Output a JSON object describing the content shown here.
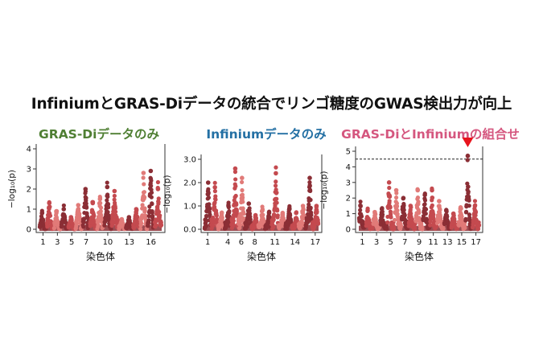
{
  "title": "InfiniumとGRAS-Diデータの統合でリンゴ糖度のGWAS検出力が向上",
  "colors": {
    "dark": "#8b2e35",
    "mid": "#c44a4f",
    "light": "#e17a78",
    "marker": "#e8141d",
    "threshold": "#222222"
  },
  "chart_data": [
    {
      "type": "scatter",
      "subtitle": "GRAS-Diデータのみ",
      "subtitle_color": "#4f7f33",
      "xlabel": "染色体",
      "ylabel": "−log₁₀(p)",
      "ylim": [
        0,
        4
      ],
      "yticks": [
        "0",
        "1",
        "2",
        "3",
        "4"
      ],
      "xticks": [
        "1",
        "3",
        "5",
        "7",
        "10",
        "13",
        "16"
      ],
      "chromosomes": [
        {
          "chr": "1",
          "peak": 0.8
        },
        {
          "chr": "2",
          "peak": 1.3
        },
        {
          "chr": "3",
          "peak": 0.9
        },
        {
          "chr": "4",
          "peak": 1.0
        },
        {
          "chr": "5",
          "peak": 0.6
        },
        {
          "chr": "6",
          "peak": 1.2
        },
        {
          "chr": "7",
          "peak": 2.0
        },
        {
          "chr": "8",
          "peak": 1.3
        },
        {
          "chr": "9",
          "peak": 1.5
        },
        {
          "chr": "10",
          "peak": 2.1
        },
        {
          "chr": "11",
          "peak": 1.9
        },
        {
          "chr": "12",
          "peak": 0.5
        },
        {
          "chr": "13",
          "peak": 0.6
        },
        {
          "chr": "14",
          "peak": 1.0
        },
        {
          "chr": "15",
          "peak": 2.8
        },
        {
          "chr": "16",
          "peak": 2.9
        },
        {
          "chr": "17",
          "peak": 2.0
        }
      ]
    },
    {
      "type": "scatter",
      "subtitle": "Infiniumデータのみ",
      "subtitle_color": "#2470a4",
      "xlabel": "染色体",
      "ylabel": "−log₁₀(p)",
      "ylim": [
        0,
        3.0
      ],
      "yticks": [
        "0.0",
        "1.0",
        "2.0",
        "3.0"
      ],
      "xticks": [
        "1",
        "4",
        "6",
        "8",
        "11",
        "14",
        "17"
      ],
      "chromosomes": [
        {
          "chr": "1",
          "peak": 2.0
        },
        {
          "chr": "2",
          "peak": 1.8
        },
        {
          "chr": "3",
          "peak": 0.7
        },
        {
          "chr": "4",
          "peak": 1.0
        },
        {
          "chr": "5",
          "peak": 2.6
        },
        {
          "chr": "6",
          "peak": 2.2
        },
        {
          "chr": "7",
          "peak": 1.1
        },
        {
          "chr": "8",
          "peak": 0.6
        },
        {
          "chr": "9",
          "peak": 0.8
        },
        {
          "chr": "10",
          "peak": 0.7
        },
        {
          "chr": "11",
          "peak": 2.4
        },
        {
          "chr": "12",
          "peak": 0.7
        },
        {
          "chr": "13",
          "peak": 0.9
        },
        {
          "chr": "14",
          "peak": 0.7
        },
        {
          "chr": "15",
          "peak": 1.0
        },
        {
          "chr": "16",
          "peak": 2.2
        },
        {
          "chr": "17",
          "peak": 1.0
        }
      ]
    },
    {
      "type": "scatter",
      "subtitle": "GRAS-DiとInfiniumの組合せ",
      "subtitle_color": "#d5577f",
      "xlabel": "染色体",
      "ylabel": "−log₁₀(p)",
      "ylim": [
        0,
        5
      ],
      "yticks": [
        "0",
        "1",
        "2",
        "3",
        "4",
        "5"
      ],
      "xticks": [
        "1",
        "3",
        "5",
        "7",
        "9",
        "11",
        "13",
        "15",
        "17"
      ],
      "threshold": 4.5,
      "peak_marker_chr": "16",
      "chromosomes": [
        {
          "chr": "1",
          "peak": 1.5
        },
        {
          "chr": "2",
          "peak": 1.2
        },
        {
          "chr": "3",
          "peak": 1.1
        },
        {
          "chr": "4",
          "peak": 1.3
        },
        {
          "chr": "5",
          "peak": 3.0
        },
        {
          "chr": "6",
          "peak": 2.5
        },
        {
          "chr": "7",
          "peak": 2.0
        },
        {
          "chr": "8",
          "peak": 1.5
        },
        {
          "chr": "9",
          "peak": 2.5
        },
        {
          "chr": "10",
          "peak": 2.2
        },
        {
          "chr": "11",
          "peak": 2.5
        },
        {
          "chr": "12",
          "peak": 1.8
        },
        {
          "chr": "13",
          "peak": 1.2
        },
        {
          "chr": "14",
          "peak": 1.0
        },
        {
          "chr": "15",
          "peak": 1.4
        },
        {
          "chr": "16",
          "peak": 4.7
        },
        {
          "chr": "17",
          "peak": 1.5
        }
      ]
    }
  ]
}
